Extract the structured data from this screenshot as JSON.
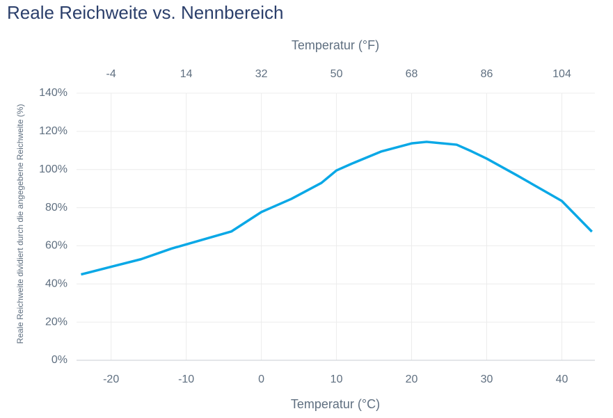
{
  "chart_data": {
    "type": "line",
    "title": "Reale Reichweite vs. Nennbereich",
    "x_label": "Temperatur (°C)",
    "x2_label": "Temperatur (°F)",
    "y_label": "Reale Reichweite dividiert durch die angegebene Reichweite (%)",
    "x": [
      -24,
      -20,
      -16,
      -12,
      -8,
      -4,
      0,
      4,
      8,
      10,
      12,
      16,
      20,
      22,
      26,
      28,
      30,
      34,
      38,
      40,
      44
    ],
    "series": [
      {
        "name": "Reale Reichweite",
        "color": "#0aa8e6",
        "values": [
          45,
          49,
          53,
          58.5,
          63,
          67.5,
          77.7,
          84.6,
          93,
          99.5,
          103,
          109.5,
          113.7,
          114.5,
          113,
          109.5,
          105.7,
          97,
          88,
          83.5,
          67.4
        ]
      }
    ],
    "xlim": [
      -24.6,
      44.4
    ],
    "xticks": [
      -20,
      -10,
      0,
      10,
      20,
      30,
      40
    ],
    "x2lim": [
      -12.28,
      111.92
    ],
    "x2ticks": [
      -4,
      14,
      32,
      50,
      68,
      86,
      104
    ],
    "ylim": [
      0,
      140
    ],
    "yticks": [
      {
        "value": 0,
        "label": "0%"
      },
      {
        "value": 20,
        "label": "20%"
      },
      {
        "value": 40,
        "label": "40%"
      },
      {
        "value": 60,
        "label": "60%"
      },
      {
        "value": 80,
        "label": "80%"
      },
      {
        "value": 100,
        "label": "100%"
      },
      {
        "value": 120,
        "label": "120%"
      },
      {
        "value": 140,
        "label": "140%"
      }
    ],
    "grid": true
  }
}
